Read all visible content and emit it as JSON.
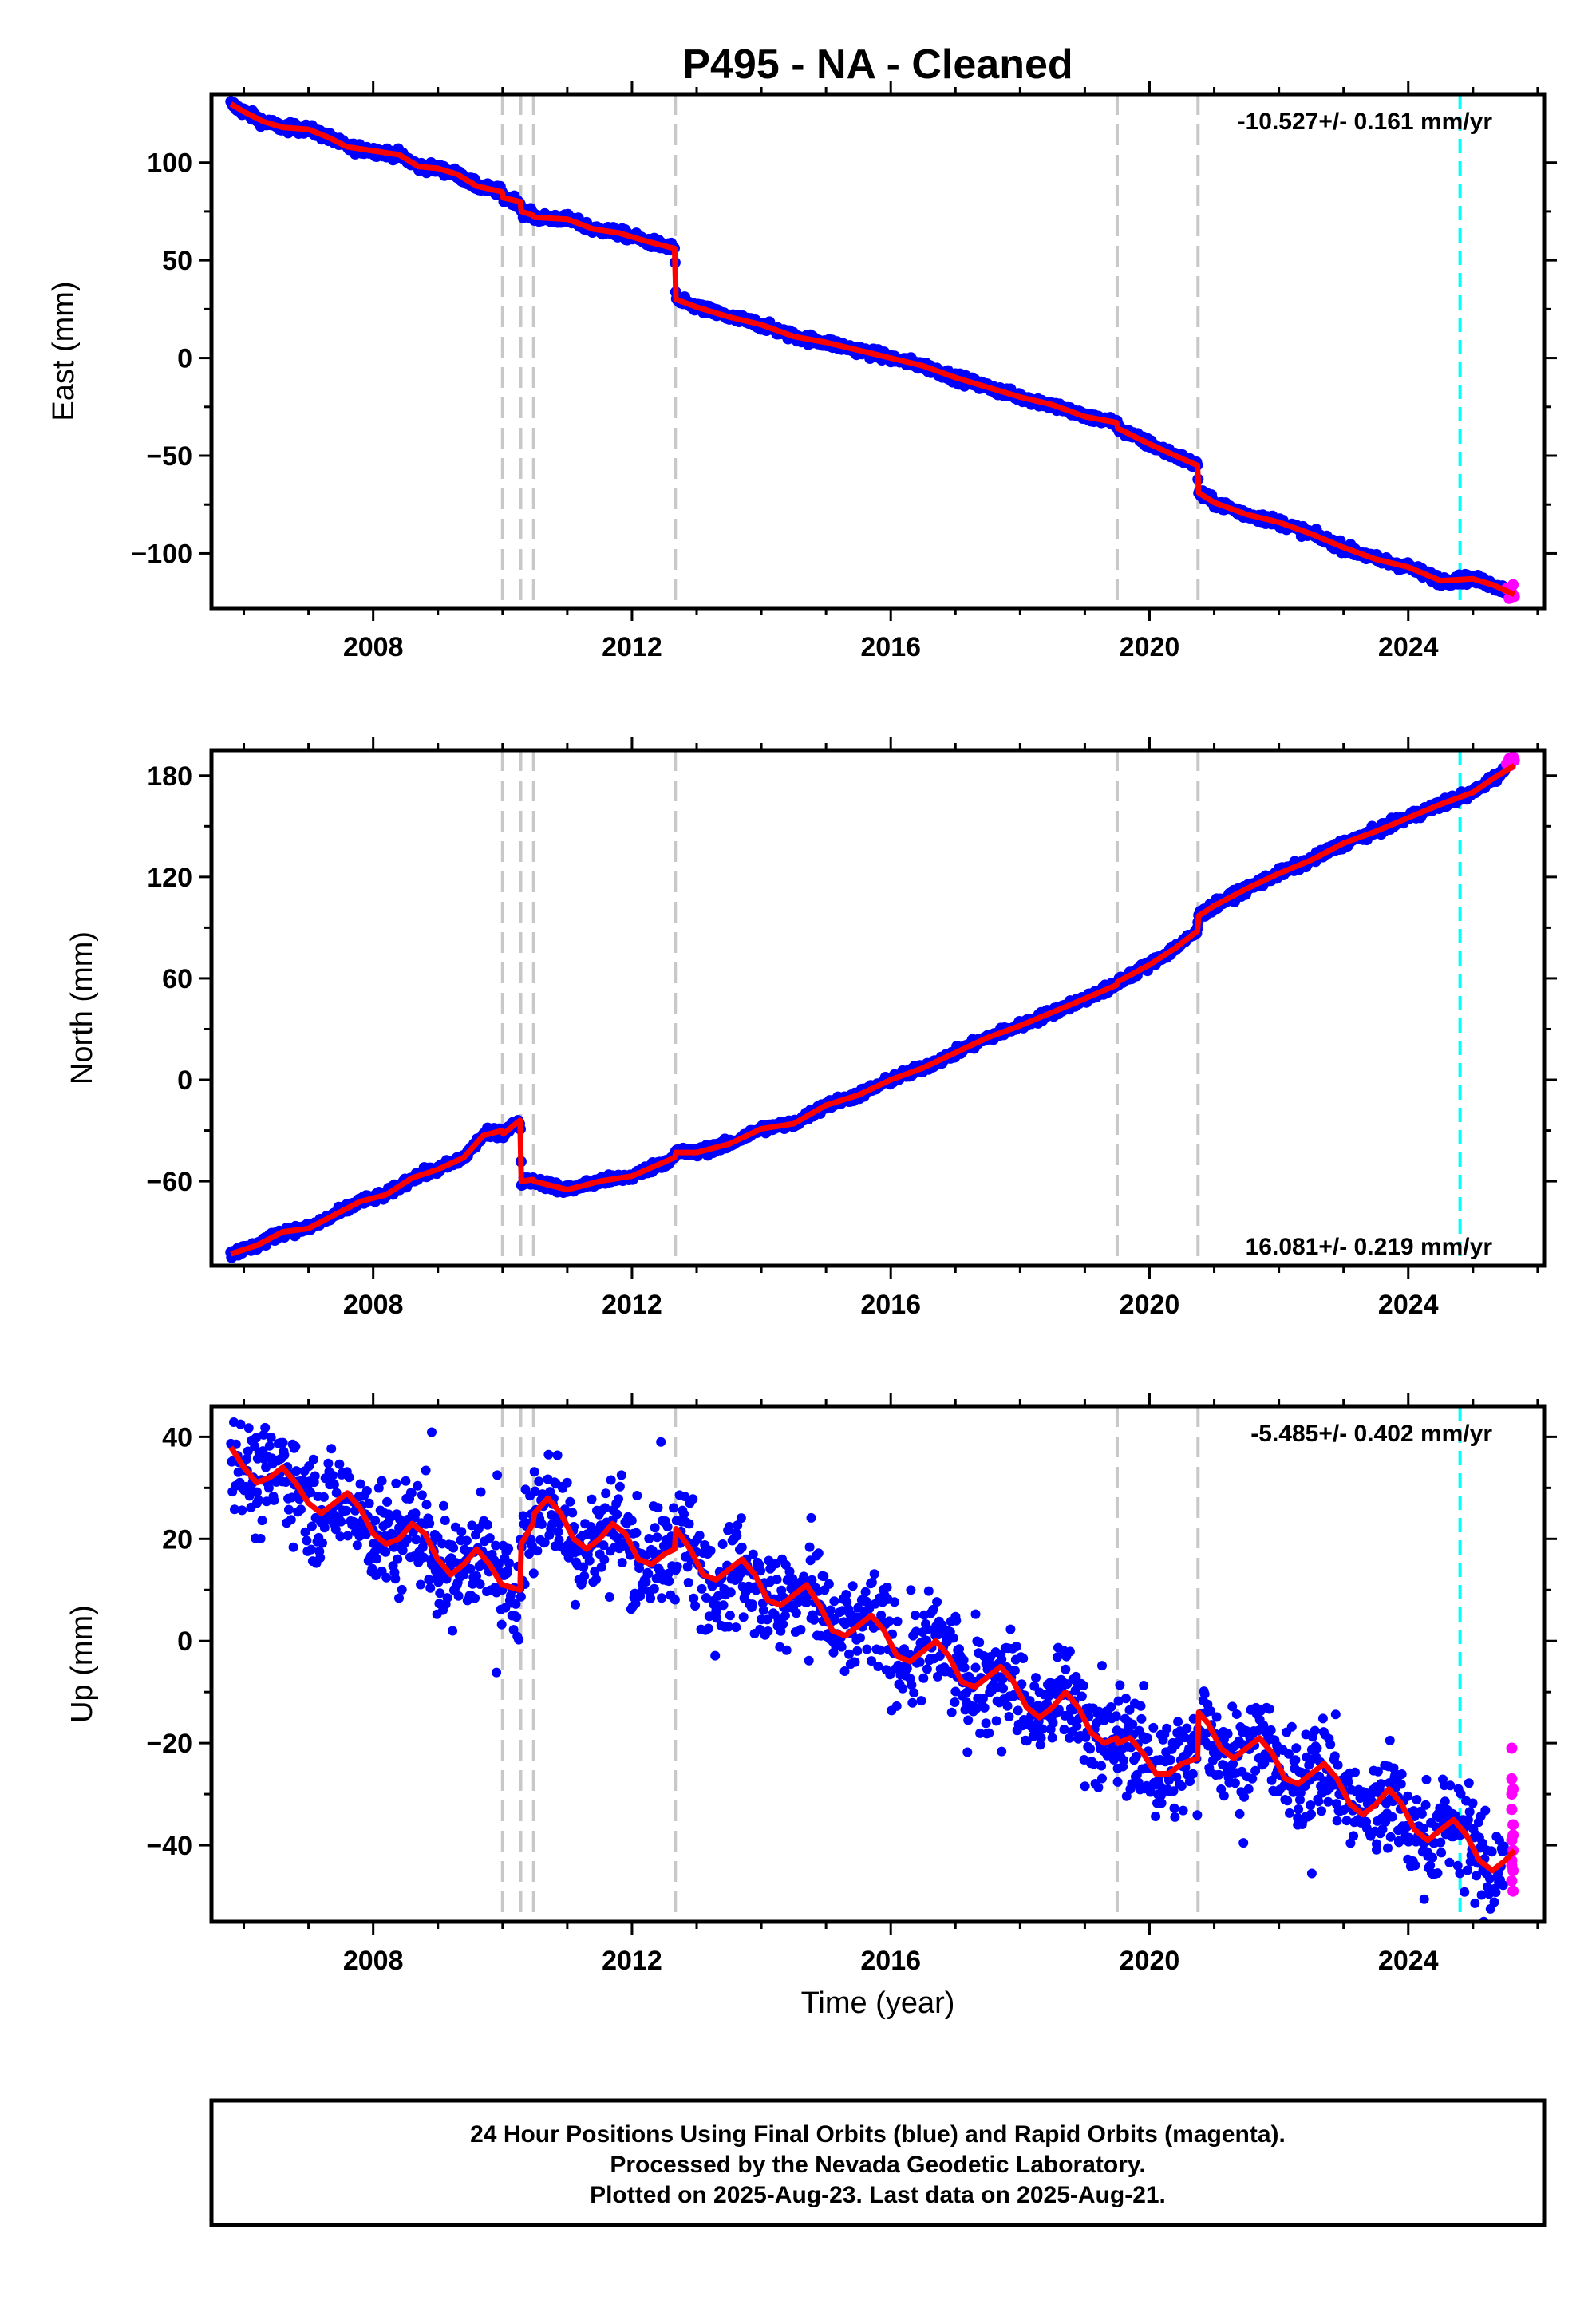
{
  "chart_data": {
    "type": "scatter",
    "title": "P495  - NA - Cleaned",
    "xlabel": "Time (year)",
    "xlim": [
      2005.5,
      2026.1
    ],
    "x_ticks": [
      2008,
      2012,
      2016,
      2020,
      2024
    ],
    "x_tick_labels": [
      "2008",
      "2012",
      "2016",
      "2020",
      "2024"
    ],
    "event_lines": [
      2010.0,
      2010.28,
      2010.48,
      2012.67,
      2019.5,
      2020.75
    ],
    "rapid_start": 2024.8,
    "data_end": 2025.64,
    "colors": {
      "final": "#0000ff",
      "rapid": "#ff00ff",
      "model": "#ff0000",
      "events": "#c8c8c8",
      "rapid_line": "#00ffff"
    },
    "panels": [
      {
        "id": "east",
        "ylabel": "East (mm)",
        "ylim": [
          -128,
          135
        ],
        "y_ticks": [
          100,
          50,
          0,
          -50,
          -100
        ],
        "y_tick_labels": [
          "100",
          "50",
          "0",
          "−50",
          "−100"
        ],
        "rate_label": "-10.527+/- 0.161 mm/yr",
        "rate_position": "top-right",
        "scatter_noise": 2.0,
        "model_points": [
          [
            2005.8,
            130
          ],
          [
            2006.0,
            126
          ],
          [
            2006.3,
            121
          ],
          [
            2006.6,
            118
          ],
          [
            2007.0,
            117
          ],
          [
            2007.3,
            113
          ],
          [
            2007.6,
            108
          ],
          [
            2008.0,
            106
          ],
          [
            2008.4,
            104
          ],
          [
            2008.7,
            98
          ],
          [
            2009.0,
            97
          ],
          [
            2009.3,
            94
          ],
          [
            2009.6,
            88
          ],
          [
            2009.99,
            85
          ],
          [
            2010.01,
            82
          ],
          [
            2010.27,
            80
          ],
          [
            2010.29,
            75
          ],
          [
            2010.47,
            73
          ],
          [
            2010.49,
            72
          ],
          [
            2011.0,
            71
          ],
          [
            2011.4,
            66
          ],
          [
            2011.8,
            64
          ],
          [
            2012.2,
            60
          ],
          [
            2012.66,
            56
          ],
          [
            2012.68,
            30
          ],
          [
            2013.0,
            26
          ],
          [
            2013.5,
            21
          ],
          [
            2014.0,
            17
          ],
          [
            2014.5,
            11
          ],
          [
            2015.0,
            8
          ],
          [
            2015.5,
            4
          ],
          [
            2016.0,
            0
          ],
          [
            2016.5,
            -4
          ],
          [
            2017.0,
            -10
          ],
          [
            2017.5,
            -15
          ],
          [
            2018.0,
            -20
          ],
          [
            2018.5,
            -24
          ],
          [
            2019.0,
            -30
          ],
          [
            2019.49,
            -33
          ],
          [
            2019.51,
            -36
          ],
          [
            2020.0,
            -44
          ],
          [
            2020.4,
            -50
          ],
          [
            2020.74,
            -55
          ],
          [
            2020.76,
            -69
          ],
          [
            2021.0,
            -74
          ],
          [
            2021.5,
            -80
          ],
          [
            2022.0,
            -84
          ],
          [
            2022.5,
            -90
          ],
          [
            2023.0,
            -97
          ],
          [
            2023.5,
            -103
          ],
          [
            2024.0,
            -107
          ],
          [
            2024.5,
            -114
          ],
          [
            2025.0,
            -113
          ],
          [
            2025.3,
            -116
          ],
          [
            2025.64,
            -121
          ]
        ],
        "rapid_points": [
          [
            2025.52,
            -118
          ],
          [
            2025.56,
            -123
          ],
          [
            2025.6,
            -120
          ],
          [
            2025.62,
            -116
          ],
          [
            2025.64,
            -122
          ],
          [
            2025.58,
            -119
          ]
        ]
      },
      {
        "id": "north",
        "ylabel": "North (mm)",
        "ylim": [
          -110,
          195
        ],
        "y_ticks": [
          180,
          120,
          60,
          0,
          -60
        ],
        "y_tick_labels": [
          "180",
          "120",
          "60",
          "0",
          "−60"
        ],
        "rate_label": "16.081+/- 0.219 mm/yr",
        "rate_position": "bottom-right",
        "scatter_noise": 2.2,
        "model_points": [
          [
            2005.8,
            -103
          ],
          [
            2006.2,
            -98
          ],
          [
            2006.6,
            -90
          ],
          [
            2007.0,
            -88
          ],
          [
            2007.4,
            -80
          ],
          [
            2007.8,
            -72
          ],
          [
            2008.2,
            -68
          ],
          [
            2008.6,
            -58
          ],
          [
            2009.0,
            -53
          ],
          [
            2009.4,
            -46
          ],
          [
            2009.7,
            -33
          ],
          [
            2009.99,
            -30
          ],
          [
            2010.01,
            -32
          ],
          [
            2010.27,
            -24
          ],
          [
            2010.29,
            -60
          ],
          [
            2010.47,
            -59
          ],
          [
            2010.49,
            -60
          ],
          [
            2011.0,
            -65
          ],
          [
            2011.5,
            -60
          ],
          [
            2012.0,
            -57
          ],
          [
            2012.66,
            -46
          ],
          [
            2012.68,
            -43
          ],
          [
            2013.0,
            -43
          ],
          [
            2013.5,
            -38
          ],
          [
            2014.0,
            -29
          ],
          [
            2014.5,
            -26
          ],
          [
            2015.0,
            -15
          ],
          [
            2015.5,
            -9
          ],
          [
            2016.0,
            0
          ],
          [
            2016.5,
            7
          ],
          [
            2017.0,
            16
          ],
          [
            2017.5,
            25
          ],
          [
            2018.0,
            32
          ],
          [
            2018.5,
            40
          ],
          [
            2019.0,
            48
          ],
          [
            2019.49,
            56
          ],
          [
            2019.51,
            58
          ],
          [
            2020.0,
            68
          ],
          [
            2020.4,
            78
          ],
          [
            2020.74,
            88
          ],
          [
            2020.76,
            97
          ],
          [
            2021.0,
            103
          ],
          [
            2021.5,
            113
          ],
          [
            2022.0,
            122
          ],
          [
            2022.5,
            130
          ],
          [
            2023.0,
            140
          ],
          [
            2023.5,
            147
          ],
          [
            2024.0,
            155
          ],
          [
            2024.5,
            163
          ],
          [
            2025.0,
            170
          ],
          [
            2025.3,
            178
          ],
          [
            2025.64,
            186
          ]
        ],
        "rapid_points": [
          [
            2025.52,
            187
          ],
          [
            2025.56,
            190
          ],
          [
            2025.6,
            188
          ],
          [
            2025.62,
            191
          ],
          [
            2025.64,
            189
          ],
          [
            2025.58,
            186
          ]
        ]
      },
      {
        "id": "up",
        "ylabel": "Up (mm)",
        "ylim": [
          -55,
          46
        ],
        "y_ticks": [
          40,
          20,
          0,
          -20,
          -40
        ],
        "y_tick_labels": [
          "40",
          "20",
          "0",
          "−20",
          "−40"
        ],
        "rate_label": "-5.485+/- 0.402 mm/yr",
        "rate_position": "top-right",
        "scatter_noise": 5.0,
        "model_points": [
          [
            2005.8,
            38
          ],
          [
            2006.0,
            34
          ],
          [
            2006.2,
            31
          ],
          [
            2006.4,
            32
          ],
          [
            2006.6,
            34
          ],
          [
            2006.8,
            31
          ],
          [
            2007.0,
            27
          ],
          [
            2007.2,
            25
          ],
          [
            2007.4,
            27
          ],
          [
            2007.6,
            29
          ],
          [
            2007.8,
            26
          ],
          [
            2008.0,
            21
          ],
          [
            2008.2,
            19
          ],
          [
            2008.4,
            20
          ],
          [
            2008.6,
            23
          ],
          [
            2008.8,
            21
          ],
          [
            2009.0,
            16
          ],
          [
            2009.2,
            13
          ],
          [
            2009.4,
            15
          ],
          [
            2009.6,
            18
          ],
          [
            2009.8,
            15
          ],
          [
            2009.99,
            11
          ],
          [
            2010.01,
            11
          ],
          [
            2010.27,
            10
          ],
          [
            2010.29,
            19
          ],
          [
            2010.47,
            23
          ],
          [
            2010.49,
            25
          ],
          [
            2010.7,
            28
          ],
          [
            2010.9,
            25
          ],
          [
            2011.1,
            20
          ],
          [
            2011.3,
            18
          ],
          [
            2011.5,
            20
          ],
          [
            2011.7,
            23
          ],
          [
            2011.9,
            21
          ],
          [
            2012.1,
            16
          ],
          [
            2012.3,
            15
          ],
          [
            2012.5,
            17
          ],
          [
            2012.66,
            18
          ],
          [
            2012.68,
            22
          ],
          [
            2012.9,
            18
          ],
          [
            2013.1,
            13
          ],
          [
            2013.3,
            12
          ],
          [
            2013.5,
            14
          ],
          [
            2013.7,
            16
          ],
          [
            2013.9,
            13
          ],
          [
            2014.1,
            8
          ],
          [
            2014.3,
            7
          ],
          [
            2014.5,
            9
          ],
          [
            2014.7,
            11
          ],
          [
            2014.9,
            7
          ],
          [
            2015.1,
            2
          ],
          [
            2015.3,
            1
          ],
          [
            2015.5,
            3
          ],
          [
            2015.7,
            5
          ],
          [
            2015.9,
            2
          ],
          [
            2016.1,
            -3
          ],
          [
            2016.3,
            -4
          ],
          [
            2016.5,
            -2
          ],
          [
            2016.7,
            0
          ],
          [
            2016.9,
            -3
          ],
          [
            2017.1,
            -8
          ],
          [
            2017.3,
            -9
          ],
          [
            2017.5,
            -7
          ],
          [
            2017.7,
            -5
          ],
          [
            2017.9,
            -8
          ],
          [
            2018.1,
            -13
          ],
          [
            2018.3,
            -15
          ],
          [
            2018.5,
            -13
          ],
          [
            2018.7,
            -10
          ],
          [
            2018.9,
            -13
          ],
          [
            2019.1,
            -18
          ],
          [
            2019.3,
            -20
          ],
          [
            2019.49,
            -19
          ],
          [
            2019.51,
            -20
          ],
          [
            2019.7,
            -19
          ],
          [
            2019.9,
            -22
          ],
          [
            2020.1,
            -26
          ],
          [
            2020.3,
            -26
          ],
          [
            2020.5,
            -24
          ],
          [
            2020.74,
            -23
          ],
          [
            2020.76,
            -14
          ],
          [
            2020.9,
            -16
          ],
          [
            2021.1,
            -21
          ],
          [
            2021.3,
            -23
          ],
          [
            2021.5,
            -21
          ],
          [
            2021.7,
            -19
          ],
          [
            2021.9,
            -22
          ],
          [
            2022.1,
            -27
          ],
          [
            2022.3,
            -28
          ],
          [
            2022.5,
            -26
          ],
          [
            2022.7,
            -24
          ],
          [
            2022.9,
            -27
          ],
          [
            2023.1,
            -32
          ],
          [
            2023.3,
            -34
          ],
          [
            2023.5,
            -32
          ],
          [
            2023.7,
            -29
          ],
          [
            2023.9,
            -32
          ],
          [
            2024.1,
            -37
          ],
          [
            2024.3,
            -39
          ],
          [
            2024.5,
            -37
          ],
          [
            2024.7,
            -35
          ],
          [
            2024.9,
            -38
          ],
          [
            2025.1,
            -43
          ],
          [
            2025.3,
            -45
          ],
          [
            2025.5,
            -43
          ],
          [
            2025.64,
            -41
          ]
        ],
        "rapid_points": [
          [
            2025.6,
            -21
          ],
          [
            2025.6,
            -27
          ],
          [
            2025.62,
            -29
          ],
          [
            2025.6,
            -33
          ],
          [
            2025.62,
            -36
          ],
          [
            2025.6,
            -39
          ],
          [
            2025.62,
            -41
          ],
          [
            2025.6,
            -43
          ],
          [
            2025.62,
            -45
          ],
          [
            2025.6,
            -47
          ],
          [
            2025.62,
            -49
          ],
          [
            2025.6,
            -30
          ],
          [
            2025.62,
            -38
          ],
          [
            2025.6,
            -44
          ]
        ]
      }
    ]
  },
  "footer": {
    "line1": "24 Hour Positions Using Final Orbits (blue) and Rapid Orbits (magenta).",
    "line2": "Processed by the Nevada Geodetic Laboratory.",
    "line3": "Plotted on 2025-Aug-23. Last data on 2025-Aug-21."
  }
}
